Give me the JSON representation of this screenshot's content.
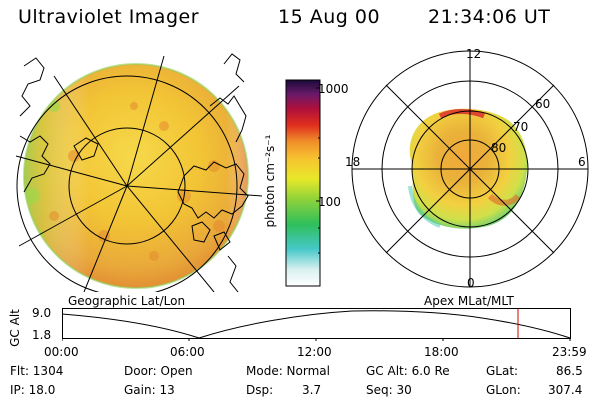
{
  "header": {
    "instrument": "Ultraviolet Imager",
    "date": "15 Aug 00",
    "time": "21:34:06 UT"
  },
  "colorbar": {
    "ticks": [
      "1000",
      "100"
    ],
    "unit_label": "photon cm⁻²s⁻¹"
  },
  "left_panel": {
    "caption": "Geographic Lat/Lon"
  },
  "right_panel": {
    "caption": "Apex MLat/MLT",
    "mlt_labels": {
      "top": "12",
      "left": "18",
      "right": "6",
      "bottom": "0"
    },
    "mlat_labels": [
      "60",
      "70",
      "80"
    ]
  },
  "altitude_plot": {
    "ylabel": "GC Alt",
    "y_ticks": [
      "9.0",
      "1.8"
    ],
    "x_ticks": [
      "00:00",
      "06:00",
      "12:00",
      "18:00",
      "23:59"
    ],
    "marker_color": "#d00000"
  },
  "info": {
    "flt": "Flt: 1304",
    "ip": "IP: 18.0",
    "door": "Door: Open",
    "gain": "Gain: 13",
    "mode": "Mode: Normal",
    "dsp_label": "Dsp:",
    "dsp_value": "3.7",
    "gcalt": "GC Alt: 6.0 Re",
    "seq": "Seq: 30",
    "glat_label": "GLat:",
    "glat_value": "86.5",
    "glon_label": "GLon:",
    "glon_value": "307.4"
  }
}
